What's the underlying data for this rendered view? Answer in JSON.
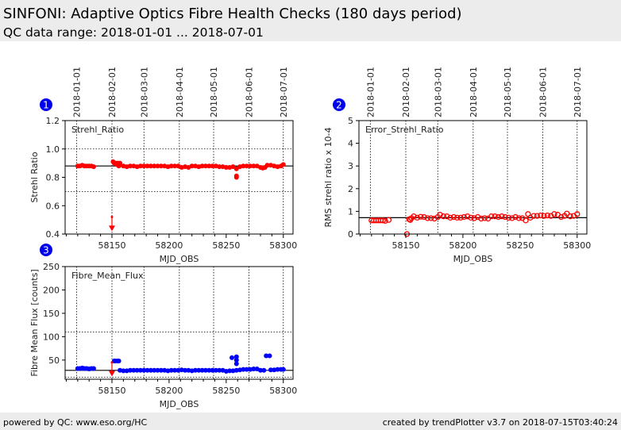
{
  "header": {
    "title": "SINFONI: Adaptive Optics Fibre Health Checks (180 days period)",
    "subtitle": "QC data range: 2018-01-01 ... 2018-07-01"
  },
  "footer": {
    "left": "powered by QC: www.eso.org/HC",
    "right": "created by trendPlotter v3.7 on 2018-07-15T03:40:24"
  },
  "colors": {
    "badge": "#0000ee",
    "red": "#ff0000",
    "blue": "#0000ff"
  },
  "chart_data": [
    {
      "id": "1",
      "type": "scatter",
      "label": "Strehl_Ratio",
      "xlabel": "MJD_OBS",
      "ylabel": "Strehl Ratio",
      "xlim": [
        58109,
        58308.5
      ],
      "ylim": [
        0.4,
        1.2
      ],
      "yticks": [
        "0.4",
        "0.6",
        "0.8",
        "1.0",
        "1.2"
      ],
      "xticks": [
        "58150",
        "58200",
        "58250",
        "58300"
      ],
      "date_ticks": [
        [
          "2018-01-01",
          58119
        ],
        [
          "2018-02-01",
          58150
        ],
        [
          "2018-03-01",
          58178
        ],
        [
          "2018-04-01",
          58209
        ],
        [
          "2018-05-01",
          58239
        ],
        [
          "2018-06-01",
          58270
        ],
        [
          "2018-07-01",
          58300
        ]
      ],
      "ref_line": 0.88,
      "thresholds": [
        1.0,
        0.7
      ],
      "marker": "filled",
      "color": "#ff0000",
      "outlier": {
        "x": 58150,
        "y": 0.52,
        "arrow_to": 0.42
      },
      "points": [
        [
          58120,
          0.88
        ],
        [
          58122,
          0.88
        ],
        [
          58124,
          0.885
        ],
        [
          58126,
          0.88
        ],
        [
          58128,
          0.88
        ],
        [
          58130,
          0.88
        ],
        [
          58132,
          0.88
        ],
        [
          58134,
          0.875
        ],
        [
          58151,
          0.91
        ],
        [
          58152,
          0.9
        ],
        [
          58153,
          0.9
        ],
        [
          58154,
          0.89
        ],
        [
          58155,
          0.9
        ],
        [
          58156,
          0.88
        ],
        [
          58157,
          0.9
        ],
        [
          58160,
          0.88
        ],
        [
          58163,
          0.875
        ],
        [
          58166,
          0.88
        ],
        [
          58169,
          0.88
        ],
        [
          58172,
          0.875
        ],
        [
          58175,
          0.88
        ],
        [
          58178,
          0.88
        ],
        [
          58181,
          0.88
        ],
        [
          58184,
          0.88
        ],
        [
          58187,
          0.88
        ],
        [
          58190,
          0.88
        ],
        [
          58193,
          0.88
        ],
        [
          58196,
          0.88
        ],
        [
          58199,
          0.875
        ],
        [
          58202,
          0.88
        ],
        [
          58205,
          0.88
        ],
        [
          58208,
          0.88
        ],
        [
          58211,
          0.87
        ],
        [
          58214,
          0.875
        ],
        [
          58217,
          0.87
        ],
        [
          58220,
          0.88
        ],
        [
          58223,
          0.88
        ],
        [
          58226,
          0.875
        ],
        [
          58229,
          0.88
        ],
        [
          58232,
          0.88
        ],
        [
          58235,
          0.88
        ],
        [
          58238,
          0.88
        ],
        [
          58241,
          0.88
        ],
        [
          58244,
          0.875
        ],
        [
          58247,
          0.875
        ],
        [
          58250,
          0.87
        ],
        [
          58253,
          0.87
        ],
        [
          58256,
          0.875
        ],
        [
          58259,
          0.86
        ],
        [
          58259,
          0.81
        ],
        [
          58259,
          0.8
        ],
        [
          58262,
          0.875
        ],
        [
          58265,
          0.88
        ],
        [
          58268,
          0.88
        ],
        [
          58271,
          0.88
        ],
        [
          58274,
          0.88
        ],
        [
          58277,
          0.88
        ],
        [
          58280,
          0.87
        ],
        [
          58282,
          0.865
        ],
        [
          58284,
          0.87
        ],
        [
          58286,
          0.885
        ],
        [
          58289,
          0.885
        ],
        [
          58292,
          0.88
        ],
        [
          58295,
          0.875
        ],
        [
          58298,
          0.88
        ],
        [
          58300,
          0.89
        ]
      ]
    },
    {
      "id": "2",
      "type": "scatter",
      "label": "Error_Strehl_Ratio",
      "xlabel": "MJD_OBS",
      "ylabel": "RMS strehl ratio x 10-4",
      "xlim": [
        58109,
        58308.5
      ],
      "ylim": [
        0,
        5
      ],
      "yticks": [
        "0",
        "1",
        "2",
        "3",
        "4",
        "5"
      ],
      "xticks": [
        "58150",
        "58200",
        "58250",
        "58300"
      ],
      "date_ticks": [
        [
          "2018-01-01",
          58119
        ],
        [
          "2018-02-01",
          58150
        ],
        [
          "2018-03-01",
          58178
        ],
        [
          "2018-04-01",
          58209
        ],
        [
          "2018-05-01",
          58239
        ],
        [
          "2018-06-01",
          58270
        ],
        [
          "2018-07-01",
          58300
        ]
      ],
      "ref_line": 0.72,
      "thresholds": [],
      "marker": "open",
      "color": "#ff0000",
      "points": [
        [
          58120,
          0.6
        ],
        [
          58122,
          0.6
        ],
        [
          58124,
          0.6
        ],
        [
          58126,
          0.6
        ],
        [
          58128,
          0.6
        ],
        [
          58130,
          0.6
        ],
        [
          58132,
          0.58
        ],
        [
          58135,
          0.62
        ],
        [
          58151,
          0.0
        ],
        [
          58153,
          0.65
        ],
        [
          58154,
          0.62
        ],
        [
          58155,
          0.7
        ],
        [
          58157,
          0.78
        ],
        [
          58160,
          0.72
        ],
        [
          58163,
          0.76
        ],
        [
          58166,
          0.75
        ],
        [
          58169,
          0.7
        ],
        [
          58172,
          0.7
        ],
        [
          58175,
          0.68
        ],
        [
          58178,
          0.75
        ],
        [
          58180,
          0.85
        ],
        [
          58183,
          0.78
        ],
        [
          58186,
          0.78
        ],
        [
          58189,
          0.72
        ],
        [
          58192,
          0.75
        ],
        [
          58195,
          0.72
        ],
        [
          58198,
          0.72
        ],
        [
          58201,
          0.75
        ],
        [
          58204,
          0.78
        ],
        [
          58207,
          0.72
        ],
        [
          58210,
          0.7
        ],
        [
          58213,
          0.75
        ],
        [
          58216,
          0.68
        ],
        [
          58219,
          0.7
        ],
        [
          58222,
          0.68
        ],
        [
          58225,
          0.78
        ],
        [
          58228,
          0.78
        ],
        [
          58231,
          0.75
        ],
        [
          58234,
          0.78
        ],
        [
          58237,
          0.75
        ],
        [
          58240,
          0.72
        ],
        [
          58243,
          0.7
        ],
        [
          58246,
          0.75
        ],
        [
          58249,
          0.7
        ],
        [
          58252,
          0.7
        ],
        [
          58255,
          0.6
        ],
        [
          58257,
          0.88
        ],
        [
          58259,
          0.72
        ],
        [
          58262,
          0.8
        ],
        [
          58265,
          0.8
        ],
        [
          58268,
          0.82
        ],
        [
          58271,
          0.8
        ],
        [
          58274,
          0.82
        ],
        [
          58277,
          0.8
        ],
        [
          58280,
          0.88
        ],
        [
          58283,
          0.85
        ],
        [
          58286,
          0.75
        ],
        [
          58289,
          0.8
        ],
        [
          58291,
          0.9
        ],
        [
          58294,
          0.78
        ],
        [
          58297,
          0.8
        ],
        [
          58300,
          0.88
        ]
      ]
    },
    {
      "id": "3",
      "type": "scatter",
      "label": "Fibre_Mean_Flux",
      "xlabel": "MJD_OBS",
      "ylabel": "Fibre Mean Flux [counts]",
      "xlim": [
        58109,
        58308.5
      ],
      "ylim": [
        9,
        250
      ],
      "yticks": [
        "50",
        "100",
        "150",
        "200",
        "250"
      ],
      "xticks": [
        "58150",
        "58200",
        "58250",
        "58300"
      ],
      "date_ticks": [
        [
          "2018-01-01",
          58119
        ],
        [
          "2018-02-01",
          58150
        ],
        [
          "2018-03-01",
          58178
        ],
        [
          "2018-04-01",
          58209
        ],
        [
          "2018-05-01",
          58239
        ],
        [
          "2018-06-01",
          58270
        ],
        [
          "2018-07-01",
          58300
        ]
      ],
      "ref_line": 28,
      "thresholds": [
        110,
        13
      ],
      "marker": "filled",
      "color": "#0000ff",
      "outlier": {
        "x": 58150,
        "y": 45,
        "arrow_to": 15
      },
      "points": [
        [
          58120,
          32
        ],
        [
          58122,
          32
        ],
        [
          58124,
          33
        ],
        [
          58126,
          32
        ],
        [
          58128,
          32
        ],
        [
          58130,
          31
        ],
        [
          58132,
          32
        ],
        [
          58134,
          32
        ],
        [
          58152,
          48
        ],
        [
          58153,
          48
        ],
        [
          58155,
          48
        ],
        [
          58156,
          48
        ],
        [
          58157,
          28
        ],
        [
          58160,
          27
        ],
        [
          58163,
          27
        ],
        [
          58166,
          28
        ],
        [
          58169,
          28
        ],
        [
          58172,
          28
        ],
        [
          58175,
          28
        ],
        [
          58178,
          28
        ],
        [
          58181,
          28
        ],
        [
          58184,
          28
        ],
        [
          58187,
          28
        ],
        [
          58190,
          28
        ],
        [
          58193,
          28
        ],
        [
          58196,
          28
        ],
        [
          58199,
          27
        ],
        [
          58202,
          28
        ],
        [
          58205,
          28
        ],
        [
          58208,
          28
        ],
        [
          58211,
          29
        ],
        [
          58214,
          28
        ],
        [
          58217,
          28
        ],
        [
          58220,
          27
        ],
        [
          58223,
          28
        ],
        [
          58226,
          28
        ],
        [
          58229,
          28
        ],
        [
          58232,
          28
        ],
        [
          58235,
          28
        ],
        [
          58238,
          28
        ],
        [
          58241,
          28
        ],
        [
          58244,
          28
        ],
        [
          58247,
          28
        ],
        [
          58250,
          26
        ],
        [
          58253,
          27
        ],
        [
          58255,
          55
        ],
        [
          58256,
          27
        ],
        [
          58259,
          57
        ],
        [
          58259,
          50
        ],
        [
          58259,
          42
        ],
        [
          58259,
          28
        ],
        [
          58262,
          29
        ],
        [
          58265,
          30
        ],
        [
          58268,
          30
        ],
        [
          58271,
          30
        ],
        [
          58274,
          31
        ],
        [
          58277,
          31
        ],
        [
          58280,
          28
        ],
        [
          58283,
          28
        ],
        [
          58285,
          59
        ],
        [
          58288,
          59
        ],
        [
          58289,
          29
        ],
        [
          58292,
          29
        ],
        [
          58295,
          30
        ],
        [
          58298,
          30
        ],
        [
          58300,
          30
        ]
      ]
    }
  ]
}
